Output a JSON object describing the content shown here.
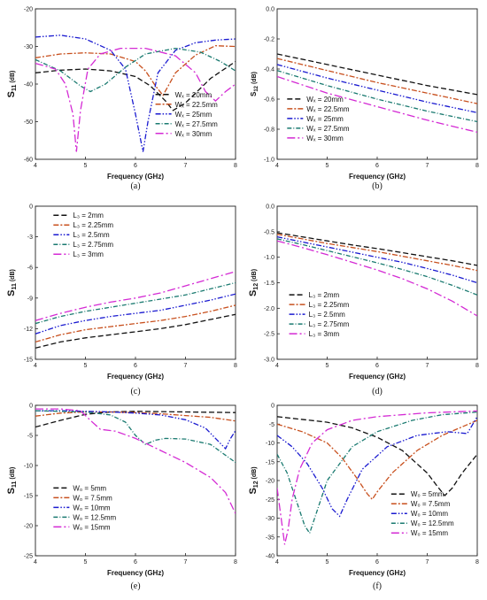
{
  "colors": {
    "black": "#111111",
    "orange": "#c8501e",
    "blue": "#1a1ad0",
    "teal": "#1a7a70",
    "magenta": "#d42ad4"
  },
  "chart_data": [
    {
      "panel": "(a)",
      "type": "line",
      "xlabel": "Frequency (GHz)",
      "ylabel": "S11 (dB)",
      "ylabel_main": "S",
      "ylabel_sub": "11",
      "ylabel_unit": " (dB)",
      "xlim": [
        4,
        8
      ],
      "ylim": [
        -60,
        -20
      ],
      "xticks": [
        "4",
        "5",
        "6",
        "7",
        "8"
      ],
      "yticks": [
        "-20",
        "-30",
        "-40",
        "-50",
        "-60"
      ],
      "legend_position": "lower-right",
      "series": [
        {
          "name": "Wₓ = 20mm",
          "color": "black",
          "x": [
            4,
            4.5,
            5,
            5.5,
            6,
            6.3,
            6.6,
            6.75,
            7,
            7.5,
            8
          ],
          "y": [
            -37,
            -36.3,
            -36,
            -36.5,
            -38,
            -40.5,
            -44.5,
            -47,
            -45,
            -38.5,
            -34
          ]
        },
        {
          "name": "Wₓ = 22.5mm",
          "color": "orange",
          "x": [
            4,
            4.5,
            5,
            5.5,
            6,
            6.2,
            6.4,
            6.55,
            6.8,
            7.2,
            7.6,
            8
          ],
          "y": [
            -33,
            -32,
            -31.7,
            -32,
            -34,
            -36.5,
            -40.5,
            -43,
            -37,
            -32.3,
            -29.8,
            -30
          ]
        },
        {
          "name": "Wₓ = 25mm",
          "color": "blue",
          "x": [
            4,
            4.5,
            5,
            5.5,
            5.8,
            6.0,
            6.15,
            6.25,
            6.45,
            6.8,
            7.2,
            7.6,
            8
          ],
          "y": [
            -27.5,
            -27,
            -28,
            -31,
            -36,
            -48,
            -58,
            -50,
            -37,
            -31,
            -29,
            -28.3,
            -28
          ]
        },
        {
          "name": "Wₓ = 27.5mm",
          "color": "teal",
          "x": [
            4,
            4.5,
            4.9,
            5.1,
            5.4,
            5.8,
            6.2,
            6.8,
            7.3,
            7.7,
            8
          ],
          "y": [
            -33.5,
            -36.5,
            -40.5,
            -42,
            -40,
            -35.5,
            -32,
            -30.5,
            -31.5,
            -34,
            -36.5
          ]
        },
        {
          "name": "Wₓ = 30mm",
          "color": "magenta",
          "x": [
            4,
            4.4,
            4.6,
            4.75,
            4.82,
            4.9,
            5.05,
            5.3,
            5.7,
            6.2,
            6.8,
            7.2,
            7.4,
            7.6,
            7.8,
            8
          ],
          "y": [
            -34.5,
            -36,
            -40,
            -48,
            -58,
            -47,
            -36,
            -32,
            -30.5,
            -30.5,
            -32.5,
            -37,
            -42,
            -44.5,
            -42,
            -40
          ]
        }
      ]
    },
    {
      "panel": "(b)",
      "type": "line",
      "xlabel": "Frequency (GHz)",
      "ylabel": "S12 (dB)",
      "ylabel_main": "S",
      "ylabel_sub": "12",
      "ylabel_unit": " (dB)",
      "xlim": [
        4,
        8
      ],
      "ylim": [
        -1.0,
        0.0
      ],
      "xticks": [
        "4",
        "5",
        "6",
        "7",
        "8"
      ],
      "yticks": [
        "0.0",
        "-0.2",
        "-0.4",
        "-0.6",
        "-0.8",
        "-1.0"
      ],
      "legend_position": "lower-left",
      "series": [
        {
          "name": "Wₓ = 20mm",
          "color": "black",
          "x": [
            4,
            5,
            6,
            7,
            8
          ],
          "y": [
            -0.3,
            -0.37,
            -0.44,
            -0.51,
            -0.57
          ]
        },
        {
          "name": "Wₓ = 22.5mm",
          "color": "orange",
          "x": [
            4,
            5,
            6,
            7,
            8
          ],
          "y": [
            -0.33,
            -0.41,
            -0.49,
            -0.56,
            -0.63
          ]
        },
        {
          "name": "Wₓ = 25mm",
          "color": "blue",
          "x": [
            4,
            5,
            6,
            7,
            8
          ],
          "y": [
            -0.37,
            -0.46,
            -0.54,
            -0.62,
            -0.69
          ]
        },
        {
          "name": "Wₓ = 27.5mm",
          "color": "teal",
          "x": [
            4,
            5,
            6,
            7,
            8
          ],
          "y": [
            -0.41,
            -0.51,
            -0.6,
            -0.68,
            -0.75
          ]
        },
        {
          "name": "Wₓ = 30mm",
          "color": "magenta",
          "x": [
            4,
            5,
            6,
            7,
            8
          ],
          "y": [
            -0.45,
            -0.56,
            -0.65,
            -0.74,
            -0.82
          ]
        }
      ]
    },
    {
      "panel": "(c)",
      "type": "line",
      "xlabel": "Frequency (GHz)",
      "ylabel": "S11 (dB)",
      "ylabel_main": "S",
      "ylabel_sub": "11",
      "ylabel_unit": " (dB)",
      "xlim": [
        4,
        8
      ],
      "ylim": [
        -15,
        0
      ],
      "xticks": [
        "4",
        "5",
        "6",
        "7",
        "8"
      ],
      "yticks": [
        "0",
        "-3",
        "-6",
        "-9",
        "-12",
        "-15"
      ],
      "legend_position": "top-left",
      "series": [
        {
          "name": "L₃ = 2mm",
          "color": "black",
          "x": [
            4,
            4.5,
            5,
            5.5,
            6,
            6.5,
            7,
            7.5,
            8
          ],
          "y": [
            -13.9,
            -13.3,
            -12.9,
            -12.6,
            -12.3,
            -12.0,
            -11.6,
            -11.1,
            -10.6
          ]
        },
        {
          "name": "L₃ = 2.25mm",
          "color": "orange",
          "x": [
            4,
            4.5,
            5,
            5.5,
            6,
            6.5,
            7,
            7.5,
            8
          ],
          "y": [
            -13.3,
            -12.6,
            -12.1,
            -11.8,
            -11.5,
            -11.2,
            -10.8,
            -10.3,
            -9.7
          ]
        },
        {
          "name": "L₃ = 2.5mm",
          "color": "blue",
          "x": [
            4,
            4.5,
            5,
            5.5,
            6,
            6.5,
            7,
            7.5,
            8
          ],
          "y": [
            -12.5,
            -11.7,
            -11.2,
            -10.8,
            -10.5,
            -10.2,
            -9.7,
            -9.2,
            -8.6
          ]
        },
        {
          "name": "L₃ = 2.75mm",
          "color": "teal",
          "x": [
            4,
            4.5,
            5,
            5.5,
            6,
            6.5,
            7,
            7.5,
            8
          ],
          "y": [
            -11.5,
            -10.8,
            -10.3,
            -9.9,
            -9.5,
            -9.1,
            -8.7,
            -8.1,
            -7.5
          ]
        },
        {
          "name": "L₃ = 3mm",
          "color": "magenta",
          "x": [
            4,
            4.5,
            5,
            5.5,
            6,
            6.5,
            7,
            7.5,
            8
          ],
          "y": [
            -11.2,
            -10.5,
            -9.9,
            -9.4,
            -9.0,
            -8.5,
            -7.8,
            -7.1,
            -6.4
          ]
        }
      ]
    },
    {
      "panel": "(d)",
      "type": "line",
      "xlabel": "Frequency (GHz)",
      "ylabel": "S12 (dB)",
      "ylabel_main": "S",
      "ylabel_sub": "12",
      "ylabel_unit": " (dB)",
      "xlim": [
        4,
        8
      ],
      "ylim": [
        -3.0,
        0.0
      ],
      "xticks": [
        "4",
        "5",
        "6",
        "7",
        "8"
      ],
      "yticks": [
        "0.0",
        "-0.5",
        "-1.0",
        "-1.5",
        "-2.0",
        "-2.5",
        "-3.0"
      ],
      "legend_position": "bottom-left",
      "series": [
        {
          "name": "L₃ = 2mm",
          "color": "black",
          "x": [
            4,
            4.5,
            5,
            5.5,
            6,
            6.5,
            7,
            7.5,
            8
          ],
          "y": [
            -0.52,
            -0.6,
            -0.68,
            -0.76,
            -0.83,
            -0.91,
            -0.99,
            -1.07,
            -1.16
          ]
        },
        {
          "name": "L₃ = 2.25mm",
          "color": "orange",
          "x": [
            4,
            4.5,
            5,
            5.5,
            6,
            6.5,
            7,
            7.5,
            8
          ],
          "y": [
            -0.55,
            -0.64,
            -0.73,
            -0.81,
            -0.89,
            -0.98,
            -1.07,
            -1.16,
            -1.26
          ]
        },
        {
          "name": "L₃ = 2.5mm",
          "color": "blue",
          "x": [
            4,
            4.5,
            5,
            5.5,
            6,
            6.5,
            7,
            7.5,
            8
          ],
          "y": [
            -0.6,
            -0.7,
            -0.8,
            -0.9,
            -1.0,
            -1.1,
            -1.22,
            -1.35,
            -1.5
          ]
        },
        {
          "name": "L₃ = 2.75mm",
          "color": "teal",
          "x": [
            4,
            4.5,
            5,
            5.5,
            6,
            6.5,
            7,
            7.5,
            8
          ],
          "y": [
            -0.64,
            -0.75,
            -0.87,
            -0.99,
            -1.11,
            -1.24,
            -1.38,
            -1.55,
            -1.74
          ]
        },
        {
          "name": "L₃ = 3mm",
          "color": "magenta",
          "x": [
            4,
            4.5,
            5,
            5.5,
            6,
            6.5,
            7,
            7.5,
            8
          ],
          "y": [
            -0.68,
            -0.81,
            -0.95,
            -1.1,
            -1.25,
            -1.42,
            -1.62,
            -1.86,
            -2.15
          ]
        }
      ]
    },
    {
      "panel": "(e)",
      "type": "line",
      "xlabel": "Frequency (GHz)",
      "ylabel": "S11 (dB)",
      "ylabel_main": "S",
      "ylabel_sub": "11",
      "ylabel_unit": " (dB)",
      "xlim": [
        4,
        8
      ],
      "ylim": [
        -25,
        0
      ],
      "xticks": [
        "4",
        "5",
        "6",
        "7",
        "8"
      ],
      "yticks": [
        "0",
        "-5",
        "-10",
        "-15",
        "-20",
        "-25"
      ],
      "legend_position": "bottom-left",
      "series": [
        {
          "name": "W₀ = 5mm",
          "color": "black",
          "x": [
            4,
            4.5,
            5,
            5.5,
            6,
            7,
            8
          ],
          "y": [
            -3.6,
            -2.5,
            -1.5,
            -1.1,
            -1.0,
            -1.1,
            -1.2
          ]
        },
        {
          "name": "W₀ = 7.5mm",
          "color": "orange",
          "x": [
            4,
            4.5,
            5,
            5.5,
            6,
            6.5,
            7,
            7.5,
            8
          ],
          "y": [
            -1.8,
            -1.3,
            -1.1,
            -1.1,
            -1.2,
            -1.4,
            -1.7,
            -2.0,
            -2.6
          ]
        },
        {
          "name": "W₀ = 10mm",
          "color": "blue",
          "x": [
            4,
            4.5,
            5,
            5.5,
            6,
            6.5,
            7,
            7.4,
            7.6,
            7.8,
            7.9,
            8
          ],
          "y": [
            -0.9,
            -0.9,
            -1.0,
            -1.1,
            -1.3,
            -1.6,
            -2.4,
            -3.8,
            -5.5,
            -7.2,
            -5.5,
            -4.2
          ]
        },
        {
          "name": "W₀ = 12.5mm",
          "color": "teal",
          "x": [
            4,
            4.5,
            5,
            5.5,
            5.8,
            6.0,
            6.2,
            6.4,
            6.6,
            7.0,
            7.5,
            8
          ],
          "y": [
            -0.9,
            -1.0,
            -1.1,
            -1.6,
            -2.8,
            -5.0,
            -6.5,
            -5.8,
            -5.5,
            -5.6,
            -6.5,
            -9.5
          ]
        },
        {
          "name": "W₀ = 15mm",
          "color": "magenta",
          "x": [
            4,
            4.5,
            4.9,
            5.1,
            5.3,
            5.6,
            6.0,
            6.5,
            7.0,
            7.5,
            7.8,
            8
          ],
          "y": [
            -0.6,
            -0.6,
            -0.9,
            -2.5,
            -4.0,
            -4.3,
            -5.5,
            -7.5,
            -9.5,
            -12.0,
            -14.5,
            -18.0
          ]
        }
      ]
    },
    {
      "panel": "(f)",
      "type": "line",
      "xlabel": "Frequency (GHz)",
      "ylabel": "S12 (dB)",
      "ylabel_main": "S",
      "ylabel_sub": "12",
      "ylabel_unit": " (dB)",
      "xlim": [
        4,
        8
      ],
      "ylim": [
        -40,
        0
      ],
      "xticks": [
        "4",
        "5",
        "6",
        "7",
        "8"
      ],
      "yticks": [
        "0",
        "-5",
        "-10",
        "-15",
        "-20",
        "-25",
        "-30",
        "-35",
        "-40"
      ],
      "legend_position": "bottom-right",
      "series": [
        {
          "name": "W₀ = 5mm",
          "color": "black",
          "x": [
            4,
            5,
            5.5,
            6,
            6.5,
            7,
            7.2,
            7.35,
            7.5,
            7.7,
            8
          ],
          "y": [
            -3,
            -4.5,
            -6,
            -8.5,
            -12,
            -18,
            -21.5,
            -24,
            -22,
            -18,
            -13
          ]
        },
        {
          "name": "W₀ = 7.5mm",
          "color": "orange",
          "x": [
            4,
            4.5,
            5,
            5.3,
            5.6,
            5.8,
            5.9,
            6.0,
            6.3,
            6.8,
            7.3,
            8
          ],
          "y": [
            -5,
            -7,
            -10,
            -14,
            -19.5,
            -23.5,
            -25,
            -23,
            -18,
            -12,
            -8,
            -4
          ]
        },
        {
          "name": "W₀ = 10mm",
          "color": "blue",
          "x": [
            4,
            4.3,
            4.6,
            4.9,
            5.1,
            5.25,
            5.4,
            5.7,
            6.2,
            6.8,
            7.4,
            7.8,
            8
          ],
          "y": [
            -8,
            -11,
            -15.5,
            -22,
            -27.5,
            -29.5,
            -25,
            -17,
            -11,
            -8,
            -7,
            -7.5,
            -3
          ]
        },
        {
          "name": "W₀ = 12.5mm",
          "color": "teal",
          "x": [
            4,
            4.2,
            4.4,
            4.55,
            4.65,
            4.8,
            5.0,
            5.5,
            6.0,
            6.7,
            7.3,
            8
          ],
          "y": [
            -13,
            -18,
            -26,
            -32,
            -34,
            -28,
            -20,
            -11,
            -7,
            -4,
            -2.5,
            -1.8
          ]
        },
        {
          "name": "W₀ = 15mm",
          "color": "magenta",
          "x": [
            4,
            4.08,
            4.15,
            4.22,
            4.3,
            4.45,
            4.7,
            5.0,
            5.5,
            6.0,
            7.0,
            8
          ],
          "y": [
            -22,
            -30,
            -37,
            -33,
            -25,
            -17,
            -10,
            -6.5,
            -4,
            -3,
            -2,
            -1.5
          ]
        }
      ]
    }
  ]
}
